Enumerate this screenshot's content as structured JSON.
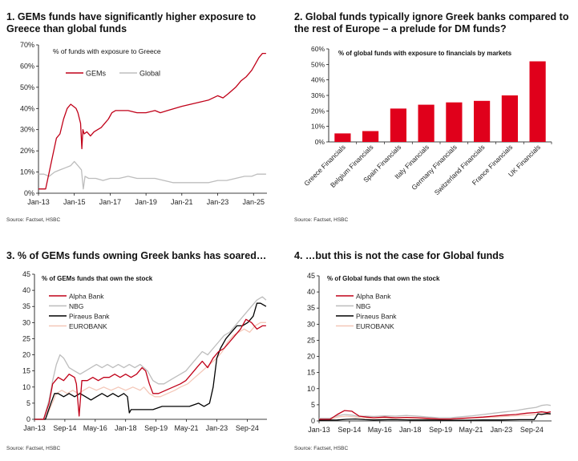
{
  "colors": {
    "red": "#C00018",
    "grey": "#BDBDBD",
    "black": "#000000",
    "peach": "#F4C7B8",
    "bar": "#E0001B"
  },
  "chart_data": [
    {
      "type": "line",
      "title": "1. GEMs funds have significantly higher exposure to Greece than global funds",
      "subtitle": "% of funds with exposure to Greece",
      "source": "Source: Factset, HSBC",
      "x_ticks": [
        "Jan-13",
        "Jan-15",
        "Jan-17",
        "Jan-19",
        "Jan-21",
        "Jan-23",
        "Jan-25"
      ],
      "y_ticks": [
        "0%",
        "10%",
        "20%",
        "30%",
        "40%",
        "50%",
        "60%",
        "70%"
      ],
      "xlim": [
        2013.0,
        2025.75
      ],
      "ylim": [
        0,
        70
      ],
      "legend_position": "top-left",
      "series": [
        {
          "name": "GEMs",
          "color": "#C00018",
          "x": [
            2013.0,
            2013.4,
            2013.6,
            2013.8,
            2014.0,
            2014.2,
            2014.4,
            2014.6,
            2014.8,
            2014.95,
            2015.1,
            2015.2,
            2015.35,
            2015.42,
            2015.48,
            2015.55,
            2015.7,
            2015.9,
            2016.1,
            2016.3,
            2016.5,
            2016.7,
            2016.9,
            2017.1,
            2017.3,
            2017.6,
            2018.0,
            2018.5,
            2019.0,
            2019.5,
            2019.8,
            2020.2,
            2020.6,
            2021.0,
            2021.5,
            2022.0,
            2022.5,
            2023.0,
            2023.3,
            2023.6,
            2024.0,
            2024.3,
            2024.6,
            2024.9,
            2025.1,
            2025.3,
            2025.5,
            2025.7
          ],
          "y": [
            2,
            2,
            10,
            18,
            26,
            28,
            35,
            40,
            42,
            41,
            40,
            38,
            33,
            21,
            30,
            28,
            29,
            27,
            29,
            30,
            31,
            33,
            35,
            38,
            39,
            39,
            39,
            38,
            38,
            39,
            38,
            39,
            40,
            41,
            42,
            43,
            44,
            46,
            45,
            47,
            50,
            53,
            55,
            58,
            61,
            64,
            66,
            66
          ]
        },
        {
          "name": "Global",
          "color": "#BDBDBD",
          "x": [
            2013.0,
            2013.3,
            2013.6,
            2013.9,
            2014.2,
            2014.5,
            2014.8,
            2015.0,
            2015.2,
            2015.4,
            2015.5,
            2015.6,
            2015.8,
            2016.2,
            2016.6,
            2017.0,
            2017.5,
            2018.0,
            2018.5,
            2019.0,
            2019.5,
            2020.0,
            2020.5,
            2021.0,
            2021.5,
            2022.0,
            2022.5,
            2023.0,
            2023.5,
            2024.0,
            2024.5,
            2024.9,
            2025.2,
            2025.5,
            2025.7
          ],
          "y": [
            9,
            9,
            8,
            10,
            11,
            12,
            13,
            15,
            13,
            11,
            2,
            8,
            7,
            7,
            6,
            7,
            7,
            8,
            7,
            7,
            7,
            6,
            5,
            5,
            5,
            5,
            5,
            6,
            6,
            7,
            8,
            8,
            9,
            9,
            9
          ]
        }
      ]
    },
    {
      "type": "bar",
      "title": "2. Global funds typically ignore Greek banks compared to the rest of Europe – a prelude for DM funds?",
      "subtitle": "% of global funds with exposure to financials by markets",
      "source": "Source: Factset, HSBC",
      "categories": [
        "Greece Financials",
        "Belgium Financials",
        "Spain Financials",
        "Italy Financials",
        "Germany Financials",
        "Switzerland Financials",
        "France Financials",
        "UK Financials"
      ],
      "values": [
        5.5,
        7,
        21.5,
        24,
        25.5,
        26.5,
        30,
        52
      ],
      "y_ticks": [
        "0%",
        "10%",
        "20%",
        "30%",
        "40%",
        "50%",
        "60%"
      ],
      "ylim": [
        0,
        60
      ]
    },
    {
      "type": "line",
      "title": "3. % of GEMs funds owning Greek banks has soared…",
      "subtitle": "% of GEMs funds that own the stock",
      "source": "Source: Factset, HSBC",
      "x_ticks": [
        "Jan-13",
        "Sep-14",
        "May-16",
        "Jan-18",
        "Sep-19",
        "May-21",
        "Jan-23",
        "Sep-24"
      ],
      "y_ticks": [
        "0",
        "5",
        "10",
        "15",
        "20",
        "25",
        "30",
        "35",
        "40",
        "45"
      ],
      "xlim": [
        2013.0,
        2025.75
      ],
      "ylim": [
        0,
        45
      ],
      "legend_position": "top-left",
      "series": [
        {
          "name": "Alpha Bank",
          "color": "#C00018",
          "x": [
            2013.0,
            2013.5,
            2013.8,
            2014.0,
            2014.3,
            2014.6,
            2014.9,
            2015.2,
            2015.3,
            2015.45,
            2015.6,
            2015.9,
            2016.2,
            2016.5,
            2016.8,
            2017.1,
            2017.4,
            2017.7,
            2018.0,
            2018.3,
            2018.6,
            2018.9,
            2019.1,
            2019.3,
            2019.5,
            2019.8,
            2020.2,
            2020.6,
            2021.0,
            2021.3,
            2021.6,
            2021.9,
            2022.2,
            2022.5,
            2022.8,
            2023.1,
            2023.4,
            2023.7,
            2024.0,
            2024.3,
            2024.6,
            2024.9,
            2025.2,
            2025.5,
            2025.7
          ],
          "y": [
            0,
            0,
            5,
            11,
            13,
            12,
            14,
            13,
            11,
            1,
            12,
            12,
            13,
            12,
            13,
            13,
            14,
            13,
            14,
            13,
            14,
            16,
            15,
            11,
            8,
            8,
            9,
            10,
            11,
            12,
            14,
            16,
            18,
            16,
            19,
            21,
            22,
            24,
            26,
            28,
            31,
            30,
            28,
            29,
            29
          ]
        },
        {
          "name": "NBG",
          "color": "#BDBDBD",
          "x": [
            2013.0,
            2013.5,
            2013.8,
            2014.0,
            2014.2,
            2014.4,
            2014.6,
            2014.9,
            2015.2,
            2015.5,
            2015.8,
            2016.1,
            2016.4,
            2016.7,
            2017.0,
            2017.3,
            2017.6,
            2017.9,
            2018.2,
            2018.5,
            2018.8,
            2019.0,
            2019.2,
            2019.5,
            2019.8,
            2020.1,
            2020.4,
            2020.7,
            2021.0,
            2021.3,
            2021.6,
            2021.9,
            2022.2,
            2022.5,
            2022.8,
            2023.1,
            2023.4,
            2023.7,
            2024.0,
            2024.3,
            2024.6,
            2024.9,
            2025.2,
            2025.5,
            2025.7
          ],
          "y": [
            0,
            0,
            6,
            12,
            17,
            20,
            19,
            16,
            15,
            14,
            15,
            16,
            17,
            16,
            17,
            16,
            17,
            16,
            17,
            16,
            17,
            16,
            15,
            12,
            11,
            11,
            12,
            13,
            14,
            15,
            17,
            19,
            21,
            20,
            22,
            24,
            26,
            27,
            29,
            31,
            33,
            35,
            37,
            38,
            37
          ]
        },
        {
          "name": "Piraeus Bank",
          "color": "#000000",
          "x": [
            2013.0,
            2013.6,
            2013.9,
            2014.1,
            2014.3,
            2014.6,
            2014.9,
            2015.2,
            2015.5,
            2015.8,
            2016.1,
            2016.4,
            2016.7,
            2017.0,
            2017.3,
            2017.6,
            2017.9,
            2018.1,
            2018.2,
            2018.3,
            2018.6,
            2019.0,
            2019.5,
            2020.0,
            2020.5,
            2021.0,
            2021.5,
            2022.0,
            2022.3,
            2022.6,
            2022.8,
            2023.0,
            2023.2,
            2023.5,
            2023.8,
            2024.1,
            2024.4,
            2024.7,
            2025.0,
            2025.2,
            2025.4,
            2025.7
          ],
          "y": [
            0,
            0,
            5,
            8,
            8,
            7,
            8,
            7,
            8,
            7,
            6,
            7,
            8,
            7,
            8,
            7,
            8,
            7,
            2,
            3,
            3,
            3,
            3,
            4,
            4,
            4,
            4,
            5,
            4,
            5,
            10,
            19,
            22,
            25,
            27,
            29,
            29,
            30,
            32,
            36,
            36,
            35
          ]
        },
        {
          "name": "EUROBANK",
          "color": "#F4C7B8",
          "x": [
            2013.0,
            2013.6,
            2013.9,
            2014.2,
            2014.5,
            2014.8,
            2015.1,
            2015.4,
            2015.7,
            2016.0,
            2016.4,
            2016.8,
            2017.2,
            2017.6,
            2018.0,
            2018.4,
            2018.8,
            2019.0,
            2019.3,
            2019.6,
            2019.9,
            2020.3,
            2020.7,
            2021.0,
            2021.4,
            2021.8,
            2022.2,
            2022.6,
            2023.0,
            2023.3,
            2023.6,
            2023.9,
            2024.2,
            2024.5,
            2024.8,
            2025.1,
            2025.4,
            2025.7
          ],
          "y": [
            0,
            0,
            4,
            8,
            9,
            8,
            9,
            8,
            9,
            10,
            9,
            10,
            9,
            10,
            9,
            10,
            9,
            10,
            8,
            7,
            7,
            8,
            9,
            10,
            11,
            13,
            15,
            17,
            19,
            21,
            24,
            26,
            27,
            28,
            27,
            29,
            30,
            30
          ]
        }
      ]
    },
    {
      "type": "line",
      "title": "4. …but this is not the case for Global funds",
      "subtitle": "% of Global funds that own the stock",
      "source": "Source: Factset, HSBC",
      "x_ticks": [
        "Jan-13",
        "Sep-14",
        "May-16",
        "Jan-18",
        "Sep-19",
        "May-21",
        "Jan-23",
        "Sep-24"
      ],
      "y_ticks": [
        "0",
        "5",
        "10",
        "15",
        "20",
        "25",
        "30",
        "35",
        "40",
        "45"
      ],
      "xlim": [
        2013.0,
        2025.75
      ],
      "ylim": [
        0,
        45
      ],
      "legend_position": "top-left",
      "series": [
        {
          "name": "Alpha Bank",
          "color": "#C00018",
          "x": [
            2013.0,
            2013.6,
            2014.0,
            2014.4,
            2014.8,
            2015.2,
            2015.6,
            2016.0,
            2016.6,
            2017.2,
            2017.8,
            2018.4,
            2019.0,
            2019.6,
            2020.2,
            2020.8,
            2021.4,
            2022.0,
            2022.6,
            2023.2,
            2023.8,
            2024.4,
            2024.9,
            2025.2,
            2025.5,
            2025.7
          ],
          "y": [
            0.5,
            0.5,
            2,
            3.2,
            3.0,
            1.5,
            1.2,
            1.0,
            1.2,
            1.0,
            1.1,
            1.0,
            0.8,
            0.6,
            0.6,
            0.8,
            1.0,
            1.2,
            1.5,
            1.8,
            2.0,
            2.4,
            2.6,
            2.8,
            2.6,
            2.8
          ]
        },
        {
          "name": "NBG",
          "color": "#BDBDBD",
          "x": [
            2013.0,
            2013.6,
            2014.0,
            2014.4,
            2014.8,
            2015.2,
            2015.6,
            2016.0,
            2016.6,
            2017.2,
            2017.8,
            2018.4,
            2019.0,
            2019.6,
            2020.2,
            2020.8,
            2021.4,
            2022.0,
            2022.6,
            2023.2,
            2023.8,
            2024.4,
            2024.9,
            2025.2,
            2025.5,
            2025.7
          ],
          "y": [
            0.8,
            0.8,
            1.6,
            2.0,
            1.8,
            1.4,
            1.5,
            1.4,
            1.6,
            1.5,
            1.7,
            1.5,
            1.2,
            1.0,
            1.0,
            1.3,
            1.6,
            2.0,
            2.4,
            2.8,
            3.2,
            3.8,
            4.2,
            4.8,
            5.0,
            4.8
          ]
        },
        {
          "name": "Piraeus Bank",
          "color": "#000000",
          "x": [
            2013.0,
            2014.0,
            2014.5,
            2015.0,
            2015.5,
            2016.0,
            2017.0,
            2018.0,
            2019.0,
            2020.0,
            2021.0,
            2022.0,
            2023.0,
            2024.0,
            2024.8,
            2025.0,
            2025.2,
            2025.5,
            2025.7
          ],
          "y": [
            0.2,
            0.3,
            0.5,
            0.6,
            0.4,
            0.3,
            0.4,
            0.3,
            0.3,
            0.2,
            0.2,
            0.3,
            0.3,
            0.4,
            0.4,
            2.2,
            2.0,
            2.3,
            2.2
          ]
        },
        {
          "name": "EUROBANK",
          "color": "#F4C7B8",
          "x": [
            2013.0,
            2013.6,
            2014.0,
            2014.5,
            2015.0,
            2015.5,
            2016.0,
            2016.6,
            2017.2,
            2017.8,
            2018.4,
            2019.0,
            2019.6,
            2020.2,
            2020.8,
            2021.4,
            2022.0,
            2022.6,
            2023.2,
            2023.8,
            2024.4,
            2024.9,
            2025.2,
            2025.5,
            2025.7
          ],
          "y": [
            0.3,
            0.4,
            1.2,
            1.5,
            1.2,
            0.9,
            0.8,
            0.9,
            0.8,
            0.9,
            0.8,
            0.6,
            0.5,
            0.6,
            0.7,
            0.9,
            1.0,
            1.2,
            1.4,
            1.6,
            1.8,
            2.0,
            2.2,
            2.0,
            2.1
          ]
        }
      ]
    }
  ]
}
